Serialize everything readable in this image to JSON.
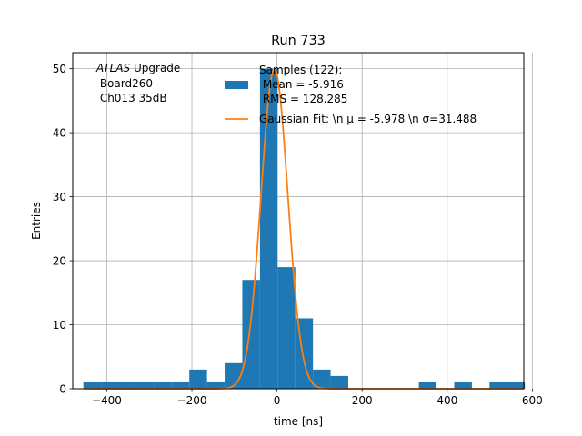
{
  "chart_data": {
    "type": "bar",
    "title": "Run 733",
    "xlabel": "time [ns]",
    "ylabel": "Entries",
    "xlim": [
      -480,
      580
    ],
    "ylim": [
      0,
      52.5
    ],
    "grid": true,
    "xticks": [
      -400,
      -200,
      0,
      200,
      400,
      600
    ],
    "yticks": [
      0,
      10,
      20,
      30,
      40,
      50
    ],
    "annotation": {
      "prefix": "ATLAS",
      "suffix": " Upgrade",
      "line2": " Board260",
      "line3": " Ch013 35dB"
    },
    "legend": {
      "position": "top-right",
      "entries": [
        {
          "kind": "patch",
          "lines": [
            "Samples (122):",
            " Mean = -5.916",
            " RMS = 128.285"
          ]
        },
        {
          "kind": "line",
          "lines": [
            "Gaussian Fit: \\n μ = -5.978 \\n σ=31.488"
          ]
        }
      ]
    },
    "histogram": {
      "name": "Samples (122):",
      "color": "#1f77b4",
      "bin_width": 41.5,
      "bins": [
        [
          -455,
          1
        ],
        [
          -413.5,
          1
        ],
        [
          -372,
          1
        ],
        [
          -330.5,
          1
        ],
        [
          -289,
          1
        ],
        [
          -247.5,
          1
        ],
        [
          -206,
          3
        ],
        [
          -164.5,
          1
        ],
        [
          -123,
          4
        ],
        [
          -81.5,
          17
        ],
        [
          -40,
          50
        ],
        [
          1.5,
          19
        ],
        [
          43,
          11
        ],
        [
          84.5,
          3
        ],
        [
          126,
          2
        ],
        [
          167.5,
          0
        ],
        [
          209,
          0
        ],
        [
          250.5,
          0
        ],
        [
          292,
          0
        ],
        [
          333.5,
          1
        ],
        [
          375,
          0
        ],
        [
          416.5,
          1
        ],
        [
          458,
          0
        ],
        [
          499.5,
          1
        ],
        [
          541,
          1
        ]
      ]
    },
    "fit": {
      "name": "Gaussian Fit",
      "color": "#ff7f0e",
      "mu": -5.978,
      "sigma": 31.488,
      "amplitude": 50,
      "x_range": [
        -455,
        580
      ]
    }
  }
}
